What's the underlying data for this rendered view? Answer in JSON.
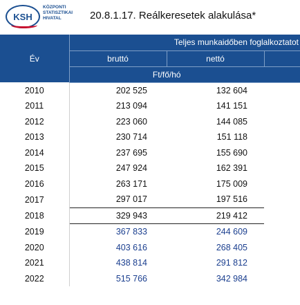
{
  "logo": {
    "abbr": "KSH",
    "lines": [
      "KÖZPONTI",
      "STATISZTIKAI",
      "HIVATAL"
    ]
  },
  "title": "20.8.1.17. Reálkeresetek alakulása*",
  "table": {
    "year_header": "Év",
    "group_header": "Teljes munkaidőben foglalkoztatot",
    "col_brutto": "bruttó",
    "col_netto": "nettó",
    "unit": "Ft/fő/hó",
    "rows": [
      {
        "year": "2010",
        "brutto": "202 525",
        "netto": "132 604"
      },
      {
        "year": "2011",
        "brutto": "213 094",
        "netto": "141 151"
      },
      {
        "year": "2012",
        "brutto": "223 060",
        "netto": "144 085"
      },
      {
        "year": "2013",
        "brutto": "230 714",
        "netto": "151 118"
      },
      {
        "year": "2014",
        "brutto": "237 695",
        "netto": "155 690"
      },
      {
        "year": "2015",
        "brutto": "247 924",
        "netto": "162 391"
      },
      {
        "year": "2016",
        "brutto": "263 171",
        "netto": "175 009"
      },
      {
        "year": "2017",
        "brutto": "297 017",
        "netto": "197 516"
      },
      {
        "year": "2018",
        "brutto": "329 943",
        "netto": "219 412"
      },
      {
        "year": "2019",
        "brutto": "367 833",
        "netto": "244 609"
      },
      {
        "year": "2020",
        "brutto": "403 616",
        "netto": "268 405"
      },
      {
        "year": "2021",
        "brutto": "438 814",
        "netto": "291 812"
      },
      {
        "year": "2022",
        "brutto": "515 766",
        "netto": "342 984"
      }
    ]
  }
}
